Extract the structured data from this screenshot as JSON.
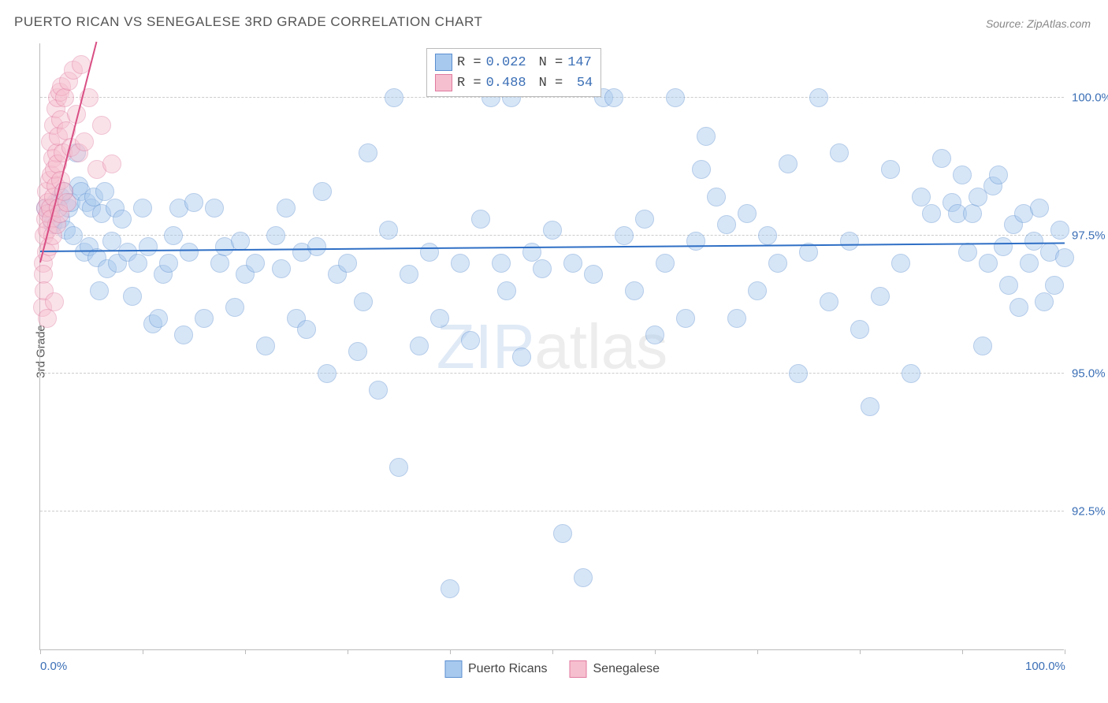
{
  "title": "PUERTO RICAN VS SENEGALESE 3RD GRADE CORRELATION CHART",
  "source": "Source: ZipAtlas.com",
  "ylabel": "3rd Grade",
  "watermark": {
    "prefix": "ZIP",
    "suffix": "atlas"
  },
  "chart": {
    "type": "scatter",
    "background_color": "#ffffff",
    "grid_color": "#cccccc",
    "axis_color": "#bbbbbb",
    "text_color": "#555555",
    "value_color": "#3b6fb6",
    "marker_radius": 12,
    "marker_opacity": 0.45,
    "xlim": [
      0,
      100
    ],
    "ylim": [
      90,
      101
    ],
    "xtick_positions": [
      0,
      10,
      20,
      30,
      40,
      50,
      60,
      70,
      80,
      90,
      100
    ],
    "xtick_labels": {
      "0": "0.0%",
      "100": "100.0%"
    },
    "ytick_positions": [
      92.5,
      95.0,
      97.5,
      100.0
    ],
    "ytick_labels": [
      "92.5%",
      "95.0%",
      "97.5%",
      "100.0%"
    ],
    "series": [
      {
        "name": "Puerto Ricans",
        "color_fill": "#a8c9ee",
        "color_stroke": "#5b8fd0",
        "R": "0.022",
        "N": "147",
        "trend": {
          "x0": 0,
          "y0": 97.2,
          "x1": 100,
          "y1": 97.35,
          "color": "#2f6fc5",
          "width": 2
        },
        "points": [
          [
            0.5,
            98.0
          ],
          [
            1,
            97.9
          ],
          [
            1.2,
            97.7
          ],
          [
            1.5,
            98.1
          ],
          [
            2,
            98.2
          ],
          [
            2,
            97.8
          ],
          [
            2.3,
            98.3
          ],
          [
            2.5,
            97.6
          ],
          [
            2.8,
            98.0
          ],
          [
            3,
            98.1
          ],
          [
            3.2,
            97.5
          ],
          [
            3.5,
            99.0
          ],
          [
            3.8,
            98.4
          ],
          [
            4,
            98.3
          ],
          [
            4.3,
            97.2
          ],
          [
            4.5,
            98.1
          ],
          [
            4.8,
            97.3
          ],
          [
            5,
            98.0
          ],
          [
            5.2,
            98.2
          ],
          [
            5.5,
            97.1
          ],
          [
            5.8,
            96.5
          ],
          [
            6,
            97.9
          ],
          [
            6.3,
            98.3
          ],
          [
            6.5,
            96.9
          ],
          [
            7,
            97.4
          ],
          [
            7.3,
            98.0
          ],
          [
            7.5,
            97.0
          ],
          [
            8,
            97.8
          ],
          [
            8.5,
            97.2
          ],
          [
            9,
            96.4
          ],
          [
            9.5,
            97.0
          ],
          [
            10,
            98.0
          ],
          [
            10.5,
            97.3
          ],
          [
            11,
            95.9
          ],
          [
            11.5,
            96.0
          ],
          [
            12,
            96.8
          ],
          [
            12.5,
            97.0
          ],
          [
            13,
            97.5
          ],
          [
            13.5,
            98.0
          ],
          [
            14,
            95.7
          ],
          [
            14.5,
            97.2
          ],
          [
            15,
            98.1
          ],
          [
            16,
            96.0
          ],
          [
            17,
            98.0
          ],
          [
            17.5,
            97.0
          ],
          [
            18,
            97.3
          ],
          [
            19,
            96.2
          ],
          [
            19.5,
            97.4
          ],
          [
            20,
            96.8
          ],
          [
            21,
            97.0
          ],
          [
            22,
            95.5
          ],
          [
            23,
            97.5
          ],
          [
            23.5,
            96.9
          ],
          [
            24,
            98.0
          ],
          [
            25,
            96.0
          ],
          [
            25.5,
            97.2
          ],
          [
            26,
            95.8
          ],
          [
            27,
            97.3
          ],
          [
            27.5,
            98.3
          ],
          [
            28,
            95.0
          ],
          [
            29,
            96.8
          ],
          [
            30,
            97.0
          ],
          [
            31,
            95.4
          ],
          [
            31.5,
            96.3
          ],
          [
            32,
            99.0
          ],
          [
            33,
            94.7
          ],
          [
            34,
            97.6
          ],
          [
            34.5,
            100.0
          ],
          [
            35,
            93.3
          ],
          [
            36,
            96.8
          ],
          [
            37,
            95.5
          ],
          [
            38,
            97.2
          ],
          [
            39,
            96.0
          ],
          [
            40,
            91.1
          ],
          [
            41,
            97.0
          ],
          [
            42,
            95.6
          ],
          [
            43,
            97.8
          ],
          [
            44,
            100.0
          ],
          [
            45,
            97.0
          ],
          [
            45.5,
            96.5
          ],
          [
            46,
            100.0
          ],
          [
            47,
            95.3
          ],
          [
            48,
            97.2
          ],
          [
            49,
            96.9
          ],
          [
            50,
            97.6
          ],
          [
            51,
            92.1
          ],
          [
            52,
            97.0
          ],
          [
            53,
            91.3
          ],
          [
            54,
            96.8
          ],
          [
            55,
            100.0
          ],
          [
            56,
            100.0
          ],
          [
            57,
            97.5
          ],
          [
            58,
            96.5
          ],
          [
            59,
            97.8
          ],
          [
            60,
            95.7
          ],
          [
            61,
            97.0
          ],
          [
            62,
            100.0
          ],
          [
            63,
            96.0
          ],
          [
            64,
            97.4
          ],
          [
            64.5,
            98.7
          ],
          [
            65,
            99.3
          ],
          [
            66,
            98.2
          ],
          [
            67,
            97.7
          ],
          [
            68,
            96.0
          ],
          [
            69,
            97.9
          ],
          [
            70,
            96.5
          ],
          [
            71,
            97.5
          ],
          [
            72,
            97.0
          ],
          [
            73,
            98.8
          ],
          [
            74,
            95.0
          ],
          [
            75,
            97.2
          ],
          [
            76,
            100.0
          ],
          [
            77,
            96.3
          ],
          [
            78,
            99.0
          ],
          [
            79,
            97.4
          ],
          [
            80,
            95.8
          ],
          [
            81,
            94.4
          ],
          [
            82,
            96.4
          ],
          [
            83,
            98.7
          ],
          [
            84,
            97.0
          ],
          [
            85,
            95.0
          ],
          [
            86,
            98.2
          ],
          [
            87,
            97.9
          ],
          [
            88,
            98.9
          ],
          [
            89,
            98.1
          ],
          [
            89.5,
            97.9
          ],
          [
            90,
            98.6
          ],
          [
            90.5,
            97.2
          ],
          [
            91,
            97.9
          ],
          [
            91.5,
            98.2
          ],
          [
            92,
            95.5
          ],
          [
            92.5,
            97.0
          ],
          [
            93,
            98.4
          ],
          [
            93.5,
            98.6
          ],
          [
            94,
            97.3
          ],
          [
            94.5,
            96.6
          ],
          [
            95,
            97.7
          ],
          [
            95.5,
            96.2
          ],
          [
            96,
            97.9
          ],
          [
            96.5,
            97.0
          ],
          [
            97,
            97.4
          ],
          [
            97.5,
            98.0
          ],
          [
            98,
            96.3
          ],
          [
            98.5,
            97.2
          ],
          [
            99,
            96.6
          ],
          [
            99.5,
            97.6
          ],
          [
            100,
            97.1
          ]
        ]
      },
      {
        "name": "Senegalese",
        "color_fill": "#f6bfcf",
        "color_stroke": "#e07ba0",
        "R": "0.488",
        "N": "54",
        "trend": {
          "x0": 0,
          "y0": 97.0,
          "x1": 5.5,
          "y1": 101.0,
          "color": "#d94f84",
          "width": 2
        },
        "points": [
          [
            0.2,
            96.2
          ],
          [
            0.3,
            97.0
          ],
          [
            0.3,
            96.8
          ],
          [
            0.4,
            97.5
          ],
          [
            0.4,
            96.5
          ],
          [
            0.5,
            97.8
          ],
          [
            0.5,
            98.0
          ],
          [
            0.6,
            97.2
          ],
          [
            0.6,
            98.3
          ],
          [
            0.7,
            97.6
          ],
          [
            0.7,
            96.0
          ],
          [
            0.8,
            98.1
          ],
          [
            0.8,
            97.9
          ],
          [
            0.9,
            98.5
          ],
          [
            0.9,
            97.3
          ],
          [
            1.0,
            98.0
          ],
          [
            1.0,
            99.2
          ],
          [
            1.1,
            97.8
          ],
          [
            1.1,
            98.6
          ],
          [
            1.2,
            98.9
          ],
          [
            1.2,
            97.5
          ],
          [
            1.3,
            99.5
          ],
          [
            1.3,
            98.2
          ],
          [
            1.4,
            98.7
          ],
          [
            1.4,
            96.3
          ],
          [
            1.5,
            99.8
          ],
          [
            1.5,
            98.4
          ],
          [
            1.6,
            99.0
          ],
          [
            1.6,
            97.7
          ],
          [
            1.7,
            100.0
          ],
          [
            1.7,
            98.8
          ],
          [
            1.8,
            99.3
          ],
          [
            1.8,
            98.0
          ],
          [
            1.9,
            100.1
          ],
          [
            1.9,
            97.9
          ],
          [
            2.0,
            99.6
          ],
          [
            2.0,
            98.5
          ],
          [
            2.1,
            100.2
          ],
          [
            2.2,
            99.0
          ],
          [
            2.3,
            98.3
          ],
          [
            2.4,
            100.0
          ],
          [
            2.5,
            99.4
          ],
          [
            2.6,
            98.1
          ],
          [
            2.8,
            100.3
          ],
          [
            3.0,
            99.1
          ],
          [
            3.2,
            100.5
          ],
          [
            3.5,
            99.7
          ],
          [
            3.8,
            99.0
          ],
          [
            4.0,
            100.6
          ],
          [
            4.3,
            99.2
          ],
          [
            4.8,
            100.0
          ],
          [
            5.5,
            98.7
          ],
          [
            6.0,
            99.5
          ],
          [
            7.0,
            98.8
          ]
        ]
      }
    ]
  },
  "legend_bottom": [
    {
      "label": "Puerto Ricans",
      "fill": "#a8c9ee",
      "stroke": "#5b8fd0"
    },
    {
      "label": "Senegalese",
      "fill": "#f6bfcf",
      "stroke": "#e07ba0"
    }
  ]
}
